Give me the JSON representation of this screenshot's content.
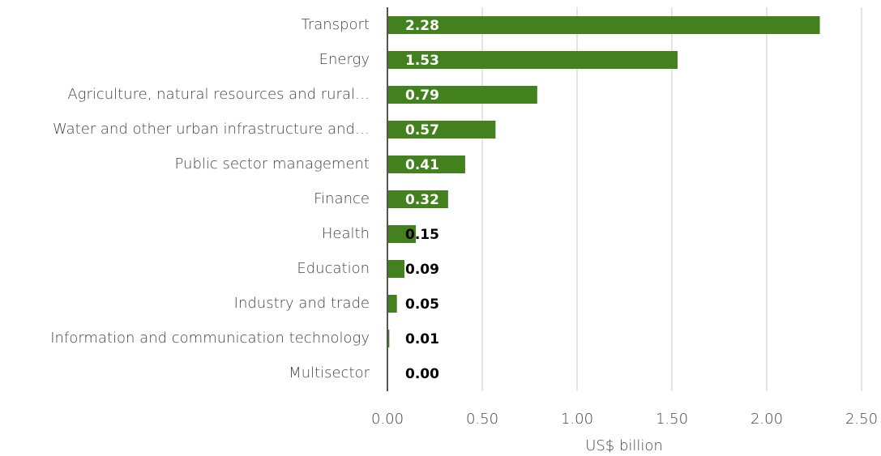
{
  "chart_data": {
    "type": "barh",
    "categories": [
      "Transport",
      "Energy",
      "Agriculture, natural resources and rural…",
      "Water and other urban infrastructure and…",
      "Public sector management",
      "Finance",
      "Health",
      "Education",
      "Industry and trade",
      "Information and communication technology",
      "Multisector"
    ],
    "values": [
      2.28,
      1.53,
      0.79,
      0.57,
      0.41,
      0.32,
      0.15,
      0.09,
      0.05,
      0.01,
      0.0
    ],
    "value_labels": [
      "2.28",
      "1.53",
      "0.79",
      "0.57",
      "0.41",
      "0.32",
      "0.15",
      "0.09",
      "0.05",
      "0.01",
      "0.00"
    ],
    "color": "#43811f",
    "xlabel": "US$ billion",
    "xlim": [
      0,
      2.5
    ],
    "xticks": [
      {
        "value": 0,
        "label": "0.00"
      },
      {
        "value": 0.5,
        "label": "0.50"
      },
      {
        "value": 1,
        "label": "1.00"
      },
      {
        "value": 1.5,
        "label": "1.50"
      },
      {
        "value": 2,
        "label": "2.00"
      },
      {
        "value": 2.5,
        "label": "2.50"
      }
    ],
    "grid": true
  }
}
